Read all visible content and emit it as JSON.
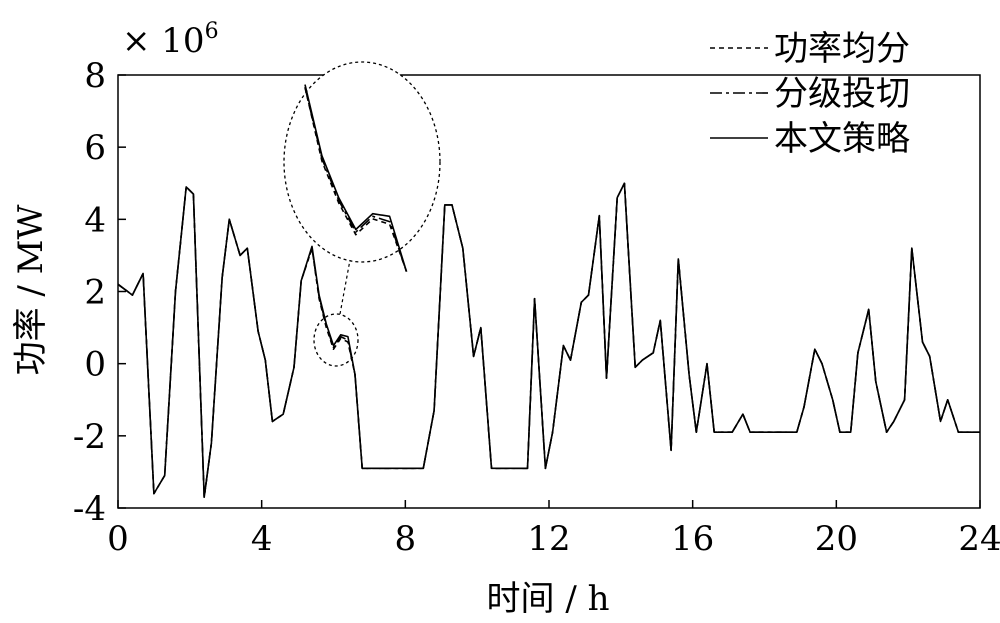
{
  "chart_data": {
    "type": "line",
    "xlabel": "时间 / h",
    "ylabel": "功率 / MW",
    "multiplier": "× 10",
    "multiplier_exp": "6",
    "xlim": [
      0,
      24
    ],
    "ylim": [
      -4,
      8
    ],
    "xticks": [
      0,
      4,
      8,
      12,
      16,
      20,
      24
    ],
    "yticks": [
      -4,
      -2,
      0,
      2,
      4,
      6,
      8
    ],
    "grid": false,
    "legend_position": "top-right",
    "legend": [
      "功率均分",
      "分级投切",
      "本文策略"
    ],
    "line_styles": [
      "dashed",
      "dash-dot",
      "solid"
    ],
    "colors": [
      "#000000",
      "#000000",
      "#000000"
    ],
    "inset": {
      "description_note": "zoom on 5.4–6.7 h",
      "x_range": [
        5.4,
        6.7
      ]
    },
    "series": [
      {
        "name": "功率均分",
        "x": [
          0,
          0.4,
          0.7,
          1.0,
          1.3,
          1.6,
          1.9,
          2.1,
          2.4,
          2.6,
          2.9,
          3.1,
          3.4,
          3.6,
          3.9,
          4.1,
          4.3,
          4.6,
          4.9,
          5.1,
          5.4,
          5.6,
          5.8,
          6.0,
          6.2,
          6.4,
          6.6,
          6.8,
          7.0,
          7.4,
          8.0,
          8.5,
          8.8,
          9.1,
          9.3,
          9.6,
          9.9,
          10.1,
          10.4,
          10.6,
          11.0,
          11.4,
          11.6,
          11.9,
          12.1,
          12.4,
          12.6,
          12.9,
          13.1,
          13.4,
          13.6,
          13.9,
          14.1,
          14.4,
          14.6,
          14.9,
          15.1,
          15.4,
          15.6,
          15.9,
          16.1,
          16.4,
          16.6,
          16.9,
          17.1,
          17.4,
          17.6,
          17.9,
          18.1,
          18.6,
          18.9,
          19.1,
          19.4,
          19.6,
          19.9,
          20.1,
          20.4,
          20.6,
          20.9,
          21.1,
          21.4,
          21.6,
          21.9,
          22.1,
          22.4,
          22.6,
          22.9,
          23.1,
          23.4,
          23.6,
          24.0
        ],
        "y": [
          2.2,
          1.9,
          2.5,
          -3.6,
          -3.1,
          2.0,
          4.9,
          4.7,
          -3.7,
          -2.2,
          2.4,
          4.0,
          3.0,
          3.2,
          0.9,
          0.1,
          -1.6,
          -1.4,
          -0.1,
          2.3,
          3.2,
          1.8,
          1.0,
          0.4,
          0.7,
          0.6,
          -0.3,
          -2.9,
          -2.9,
          -2.9,
          -2.9,
          -2.9,
          -1.3,
          4.4,
          4.4,
          3.2,
          0.2,
          1.0,
          -2.9,
          -2.9,
          -2.9,
          -2.9,
          1.8,
          -2.9,
          -1.9,
          0.5,
          0.1,
          1.7,
          1.9,
          4.1,
          -0.4,
          4.6,
          5.0,
          -0.1,
          0.1,
          0.3,
          1.2,
          -2.4,
          2.9,
          -0.3,
          -1.9,
          0.0,
          -1.9,
          -1.9,
          -1.9,
          -1.4,
          -1.9,
          -1.9,
          -1.9,
          -1.9,
          -1.9,
          -1.2,
          0.4,
          0.0,
          -1.0,
          -1.9,
          -1.9,
          0.3,
          1.5,
          -0.5,
          -1.9,
          -1.6,
          -1.0,
          3.2,
          0.6,
          0.2,
          -1.6,
          -1.0,
          -1.9,
          -1.9,
          -1.9
        ]
      },
      {
        "name": "分级投切",
        "x": [
          0,
          0.4,
          0.7,
          1.0,
          1.3,
          1.6,
          1.9,
          2.1,
          2.4,
          2.6,
          2.9,
          3.1,
          3.4,
          3.6,
          3.9,
          4.1,
          4.3,
          4.6,
          4.9,
          5.1,
          5.4,
          5.6,
          5.8,
          6.0,
          6.2,
          6.4,
          6.6,
          6.8,
          7.0,
          7.4,
          8.0,
          8.5,
          8.8,
          9.1,
          9.3,
          9.6,
          9.9,
          10.1,
          10.4,
          10.6,
          11.0,
          11.4,
          11.6,
          11.9,
          12.1,
          12.4,
          12.6,
          12.9,
          13.1,
          13.4,
          13.6,
          13.9,
          14.1,
          14.4,
          14.6,
          14.9,
          15.1,
          15.4,
          15.6,
          15.9,
          16.1,
          16.4,
          16.6,
          16.9,
          17.1,
          17.4,
          17.6,
          17.9,
          18.1,
          18.6,
          18.9,
          19.1,
          19.4,
          19.6,
          19.9,
          20.1,
          20.4,
          20.6,
          20.9,
          21.1,
          21.4,
          21.6,
          21.9,
          22.1,
          22.4,
          22.6,
          22.9,
          23.1,
          23.4,
          23.6,
          24.0
        ],
        "y": [
          2.2,
          1.9,
          2.5,
          -3.6,
          -3.1,
          2.0,
          4.9,
          4.7,
          -3.7,
          -2.2,
          2.4,
          4.0,
          3.0,
          3.2,
          0.9,
          0.1,
          -1.6,
          -1.4,
          -0.1,
          2.3,
          3.2,
          1.85,
          1.05,
          0.45,
          0.75,
          0.65,
          -0.3,
          -2.9,
          -2.9,
          -2.9,
          -2.9,
          -2.9,
          -1.3,
          4.4,
          4.4,
          3.2,
          0.2,
          1.0,
          -2.9,
          -2.9,
          -2.9,
          -2.9,
          1.8,
          -2.9,
          -1.9,
          0.5,
          0.1,
          1.7,
          1.9,
          4.1,
          -0.4,
          4.6,
          5.0,
          -0.1,
          0.1,
          0.3,
          1.2,
          -2.4,
          2.9,
          -0.3,
          -1.9,
          0.0,
          -1.9,
          -1.9,
          -1.9,
          -1.4,
          -1.9,
          -1.9,
          -1.9,
          -1.9,
          -1.9,
          -1.2,
          0.4,
          0.0,
          -1.0,
          -1.9,
          -1.9,
          0.3,
          1.5,
          -0.5,
          -1.9,
          -1.6,
          -1.0,
          3.2,
          0.6,
          0.2,
          -1.6,
          -1.0,
          -1.9,
          -1.9,
          -1.9
        ]
      },
      {
        "name": "本文策略",
        "x": [
          0,
          0.4,
          0.7,
          1.0,
          1.3,
          1.6,
          1.9,
          2.1,
          2.4,
          2.6,
          2.9,
          3.1,
          3.4,
          3.6,
          3.9,
          4.1,
          4.3,
          4.6,
          4.9,
          5.1,
          5.4,
          5.6,
          5.8,
          6.0,
          6.2,
          6.4,
          6.6,
          6.8,
          7.0,
          7.4,
          8.0,
          8.5,
          8.8,
          9.1,
          9.3,
          9.6,
          9.9,
          10.1,
          10.4,
          10.6,
          11.0,
          11.4,
          11.6,
          11.9,
          12.1,
          12.4,
          12.6,
          12.9,
          13.1,
          13.4,
          13.6,
          13.9,
          14.1,
          14.4,
          14.6,
          14.9,
          15.1,
          15.4,
          15.6,
          15.9,
          16.1,
          16.4,
          16.6,
          16.9,
          17.1,
          17.4,
          17.6,
          17.9,
          18.1,
          18.6,
          18.9,
          19.1,
          19.4,
          19.6,
          19.9,
          20.1,
          20.4,
          20.6,
          20.9,
          21.1,
          21.4,
          21.6,
          21.9,
          22.1,
          22.4,
          22.6,
          22.9,
          23.1,
          23.4,
          23.6,
          24.0
        ],
        "y": [
          2.2,
          1.9,
          2.5,
          -3.6,
          -3.1,
          2.0,
          4.9,
          4.7,
          -3.7,
          -2.2,
          2.4,
          4.0,
          3.0,
          3.2,
          0.9,
          0.1,
          -1.6,
          -1.4,
          -0.1,
          2.3,
          3.25,
          1.9,
          1.1,
          0.5,
          0.8,
          0.75,
          -0.3,
          -2.9,
          -2.9,
          -2.9,
          -2.9,
          -2.9,
          -1.3,
          4.4,
          4.4,
          3.2,
          0.2,
          1.0,
          -2.9,
          -2.9,
          -2.9,
          -2.9,
          1.8,
          -2.9,
          -1.9,
          0.5,
          0.1,
          1.7,
          1.9,
          4.1,
          -0.4,
          4.6,
          5.0,
          -0.1,
          0.1,
          0.3,
          1.2,
          -2.4,
          2.9,
          -0.3,
          -1.9,
          0.0,
          -1.9,
          -1.9,
          -1.9,
          -1.4,
          -1.9,
          -1.9,
          -1.9,
          -1.9,
          -1.9,
          -1.2,
          0.4,
          0.0,
          -1.0,
          -1.9,
          -1.9,
          0.3,
          1.5,
          -0.5,
          -1.9,
          -1.6,
          -1.0,
          3.2,
          0.6,
          0.2,
          -1.6,
          -1.0,
          -1.9,
          -1.9,
          -1.9
        ]
      }
    ]
  }
}
